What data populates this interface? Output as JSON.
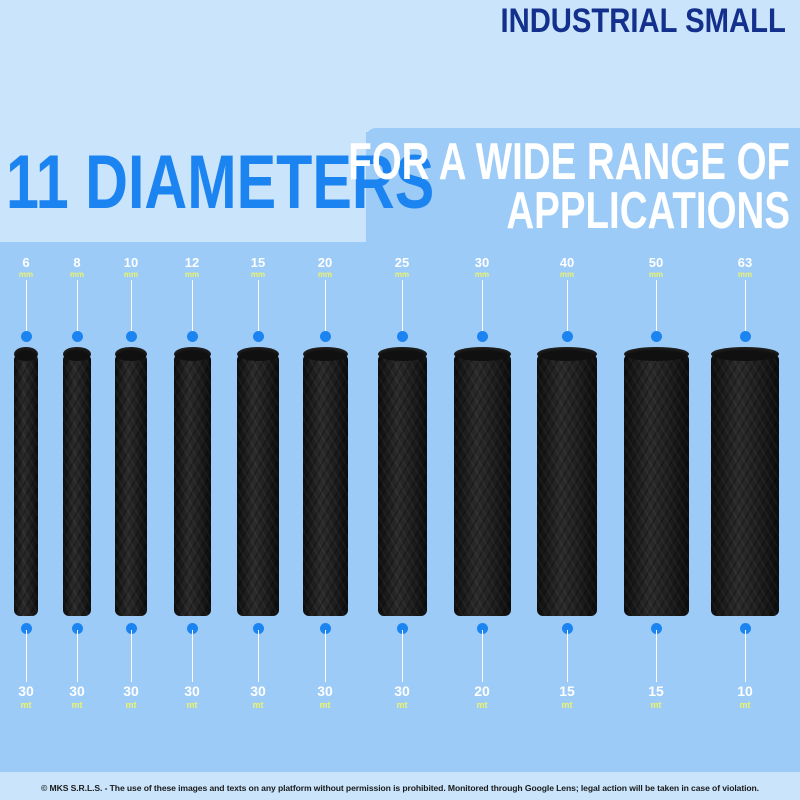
{
  "header": {
    "brand": "INDUSTRIAL SMALL",
    "count_title": "11 DIAMETERS",
    "subtitle_lines": [
      "FOR A WIDE RANGE OF",
      "APPLICATIONS"
    ]
  },
  "products": [
    {
      "diameter": "6",
      "diameter_unit": "mm",
      "length": "30",
      "length_unit": "mt"
    },
    {
      "diameter": "8",
      "diameter_unit": "mm",
      "length": "30",
      "length_unit": "mt"
    },
    {
      "diameter": "10",
      "diameter_unit": "mm",
      "length": "30",
      "length_unit": "mt"
    },
    {
      "diameter": "12",
      "diameter_unit": "mm",
      "length": "30",
      "length_unit": "mt"
    },
    {
      "diameter": "15",
      "diameter_unit": "mm",
      "length": "30",
      "length_unit": "mt"
    },
    {
      "diameter": "20",
      "diameter_unit": "mm",
      "length": "30",
      "length_unit": "mt"
    },
    {
      "diameter": "25",
      "diameter_unit": "mm",
      "length": "30",
      "length_unit": "mt"
    },
    {
      "diameter": "30",
      "diameter_unit": "mm",
      "length": "20",
      "length_unit": "mt"
    },
    {
      "diameter": "40",
      "diameter_unit": "mm",
      "length": "15",
      "length_unit": "mt"
    },
    {
      "diameter": "50",
      "diameter_unit": "mm",
      "length": "15",
      "length_unit": "mt"
    },
    {
      "diameter": "63",
      "diameter_unit": "mm",
      "length": "10",
      "length_unit": "mt"
    }
  ],
  "footer": {
    "notice": "© MKS S.R.L.S. - The use of these images and texts on any platform without permission is prohibited. Monitored through Google Lens; legal action will be taken in case of violation."
  },
  "colors": {
    "background": "#c9e4fb",
    "panel": "#9ccbf8",
    "brand": "#14308d",
    "accent": "#1c84f0",
    "unit": "#ecf36b",
    "tube": "#1a1a1a"
  }
}
